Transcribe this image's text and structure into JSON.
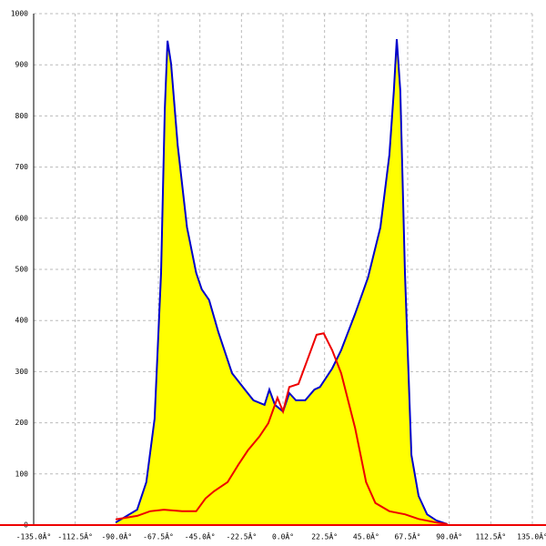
{
  "chart_data": {
    "type": "area",
    "xlim": [
      -135,
      135
    ],
    "ylim": [
      0,
      1000
    ],
    "xticks": [
      {
        "value": -135,
        "label": "-135.0Â°"
      },
      {
        "value": -112.5,
        "label": "-112.5Â°"
      },
      {
        "value": -90,
        "label": "-90.0Â°"
      },
      {
        "value": -67.5,
        "label": "-67.5Â°"
      },
      {
        "value": -45,
        "label": "-45.0Â°"
      },
      {
        "value": -22.5,
        "label": "-22.5Â°"
      },
      {
        "value": 0,
        "label": "0.0Â°"
      },
      {
        "value": 22.5,
        "label": "22.5Â°"
      },
      {
        "value": 45,
        "label": "45.0Â°"
      },
      {
        "value": 67.5,
        "label": "67.5Â°"
      },
      {
        "value": 90,
        "label": "90.0Â°"
      },
      {
        "value": 112.5,
        "label": "112.5Â°"
      },
      {
        "value": 135,
        "label": "135.0Â°"
      }
    ],
    "yticks": [
      0,
      100,
      200,
      300,
      400,
      500,
      600,
      700,
      800,
      900,
      1000
    ],
    "grid": true,
    "series": [
      {
        "color": "#0000cc",
        "fill": "#ffff00",
        "x": [
          -90.6,
          -79,
          -74,
          -69.5,
          -66,
          -64,
          -62.5,
          -60.6,
          -57,
          -52,
          -47,
          -44,
          -40,
          -35,
          -27.6,
          -20,
          -16,
          -10,
          -7.4,
          -4.4,
          0,
          3.4,
          7,
          12,
          17,
          20,
          26.6,
          31.5,
          39,
          46,
          52.7,
          57.6,
          60,
          61.6,
          63.5,
          66,
          69.5,
          73.4,
          78,
          83,
          89
        ],
        "values": [
          5,
          30,
          84,
          208,
          493,
          813,
          947,
          902,
          742,
          582,
          493,
          461,
          440,
          377,
          297,
          262,
          244,
          235,
          265,
          235,
          222,
          258,
          244,
          244,
          265,
          270,
          306,
          342,
          413,
          484,
          582,
          724,
          849,
          950,
          849,
          493,
          137,
          57,
          21,
          9,
          2
        ]
      },
      {
        "color": "#ee0000",
        "x": [
          -90.6,
          -79,
          -72,
          -64.5,
          -54.7,
          -47,
          -42,
          -37.4,
          -30,
          -24,
          -19,
          -12.8,
          -8,
          -3,
          0,
          3.4,
          8.4,
          13.3,
          18.2,
          22,
          26.6,
          31.5,
          39,
          45,
          50,
          57.6,
          66,
          73.4,
          83,
          89
        ],
        "values": [
          11,
          18,
          27,
          30,
          27,
          27,
          52,
          66,
          84,
          119,
          146,
          173,
          199,
          249,
          222,
          270,
          276,
          324,
          372,
          375,
          342,
          297,
          190,
          84,
          43,
          27,
          21,
          12,
          5,
          2
        ]
      }
    ]
  }
}
